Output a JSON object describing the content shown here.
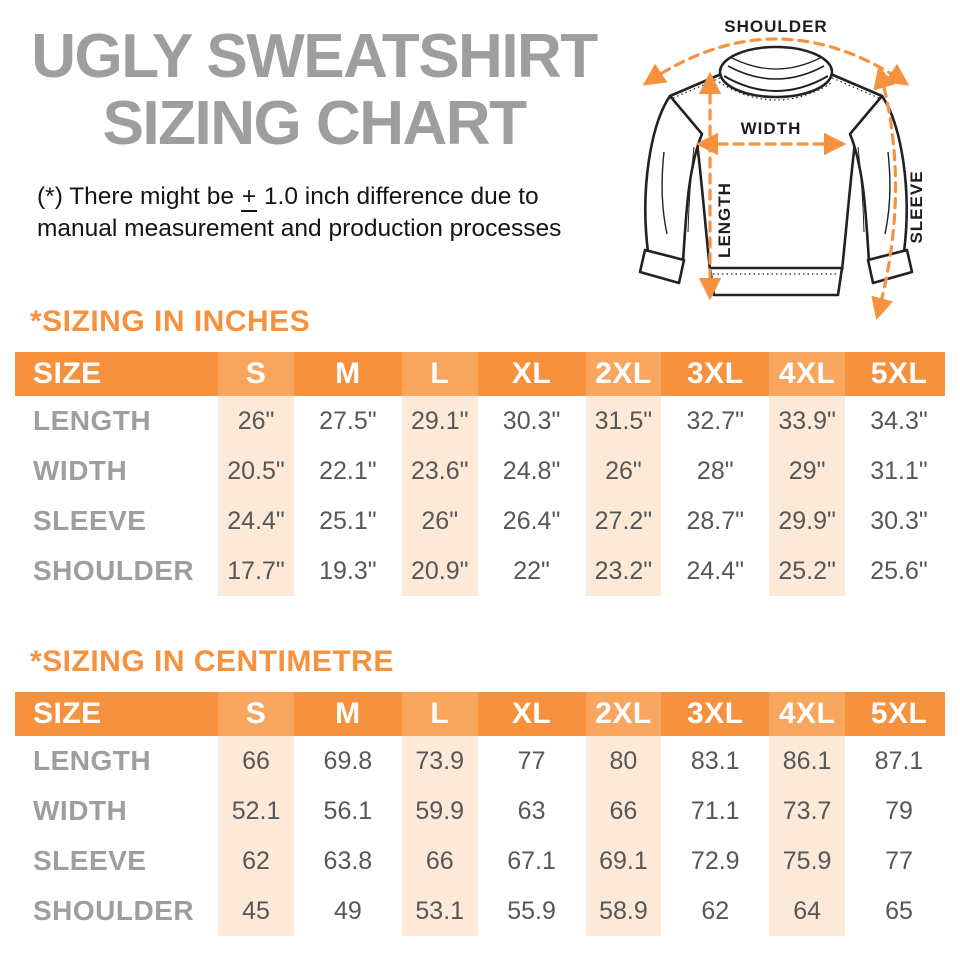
{
  "title": {
    "line1": "UGLY SWEATSHIRT",
    "line2": "SIZING CHART"
  },
  "disclaimer": {
    "line1_prefix": "(*) There might be ",
    "pm_symbol": "+",
    "line1_suffix": " 1.0 inch difference due to",
    "line2": "manual measurement and production processes"
  },
  "diagram": {
    "shoulder_label": "SHOULDER",
    "width_label": "WIDTH",
    "length_label": "LENGTH",
    "sleeve_label": "SLEEVE"
  },
  "colors": {
    "accent_orange": "#F6913D",
    "header_light_orange": "#F8A55E",
    "stripe_peach": "#FCE9D8",
    "title_gray": "#9E9E9D",
    "value_gray": "#575757"
  },
  "chart_data": [
    {
      "type": "table",
      "section_title": "*SIZING IN INCHES",
      "columns": [
        "SIZE",
        "S",
        "M",
        "L",
        "XL",
        "2XL",
        "3XL",
        "4XL",
        "5XL"
      ],
      "shaded_columns": [
        "S",
        "L",
        "2XL",
        "4XL"
      ],
      "rows": [
        {
          "label": "LENGTH",
          "values": [
            "26\"",
            "27.5\"",
            "29.1\"",
            "30.3\"",
            "31.5\"",
            "32.7\"",
            "33.9\"",
            "34.3\""
          ]
        },
        {
          "label": "WIDTH",
          "values": [
            "20.5\"",
            "22.1\"",
            "23.6\"",
            "24.8\"",
            "26\"",
            "28\"",
            "29\"",
            "31.1\""
          ]
        },
        {
          "label": "SLEEVE",
          "values": [
            "24.4\"",
            "25.1\"",
            "26\"",
            "26.4\"",
            "27.2\"",
            "28.7\"",
            "29.9\"",
            "30.3\""
          ]
        },
        {
          "label": "SHOULDER",
          "values": [
            "17.7\"",
            "19.3\"",
            "20.9\"",
            "22\"",
            "23.2\"",
            "24.4\"",
            "25.2\"",
            "25.6\""
          ]
        }
      ]
    },
    {
      "type": "table",
      "section_title": "*SIZING IN CENTIMETRE",
      "columns": [
        "SIZE",
        "S",
        "M",
        "L",
        "XL",
        "2XL",
        "3XL",
        "4XL",
        "5XL"
      ],
      "shaded_columns": [
        "S",
        "L",
        "2XL",
        "4XL"
      ],
      "rows": [
        {
          "label": "LENGTH",
          "values": [
            "66",
            "69.8",
            "73.9",
            "77",
            "80",
            "83.1",
            "86.1",
            "87.1"
          ]
        },
        {
          "label": "WIDTH",
          "values": [
            "52.1",
            "56.1",
            "59.9",
            "63",
            "66",
            "71.1",
            "73.7",
            "79"
          ]
        },
        {
          "label": "SLEEVE",
          "values": [
            "62",
            "63.8",
            "66",
            "67.1",
            "69.1",
            "72.9",
            "75.9",
            "77"
          ]
        },
        {
          "label": "SHOULDER",
          "values": [
            "45",
            "49",
            "53.1",
            "55.9",
            "58.9",
            "62",
            "64",
            "65"
          ]
        }
      ]
    }
  ]
}
